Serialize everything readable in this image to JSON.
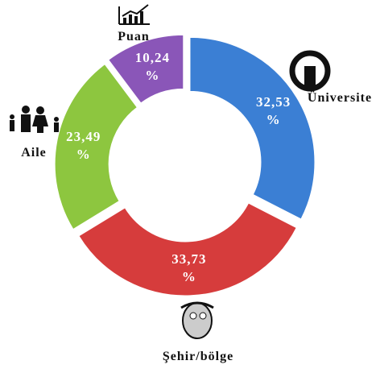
{
  "chart_data": {
    "type": "pie",
    "donut": true,
    "categories": [
      "Üniversite",
      "Şehir/bölge",
      "Aile",
      "Puan"
    ],
    "values": [
      32.53,
      33.73,
      23.49,
      10.24
    ],
    "value_labels": [
      "32,53\n%",
      "33,73\n%",
      "23,49\n%",
      "10,24\n%"
    ],
    "colors": [
      "#3b7fd4",
      "#d63c3c",
      "#8dc63f",
      "#8a56b8"
    ]
  }
}
